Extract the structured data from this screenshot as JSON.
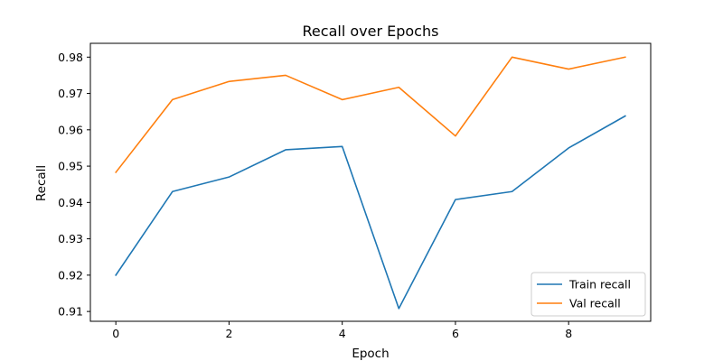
{
  "chart_data": {
    "type": "line",
    "title": "Recall over Epochs",
    "xlabel": "Epoch",
    "ylabel": "Recall",
    "x": [
      0,
      1,
      2,
      3,
      4,
      5,
      6,
      7,
      8,
      9
    ],
    "xlim": [
      -0.45,
      9.45
    ],
    "ylim": [
      0.9073,
      0.9838
    ],
    "xticks": [
      0,
      2,
      4,
      6,
      8
    ],
    "xtick_labels": [
      "0",
      "2",
      "4",
      "6",
      "8"
    ],
    "yticks": [
      0.91,
      0.92,
      0.93,
      0.94,
      0.95,
      0.96,
      0.97,
      0.98
    ],
    "ytick_labels": [
      "0.91",
      "0.92",
      "0.93",
      "0.94",
      "0.95",
      "0.96",
      "0.97",
      "0.98"
    ],
    "grid": false,
    "legend_position": "lower right",
    "series": [
      {
        "name": "Train recall",
        "color": "#1f77b4",
        "values": [
          0.92,
          0.943,
          0.947,
          0.9545,
          0.9554,
          0.9108,
          0.9408,
          0.943,
          0.955,
          0.9638
        ]
      },
      {
        "name": "Val recall",
        "color": "#ff7f0e",
        "values": [
          0.9483,
          0.9683,
          0.9733,
          0.975,
          0.9683,
          0.9717,
          0.9583,
          0.98,
          0.9767,
          0.98
        ]
      }
    ]
  }
}
